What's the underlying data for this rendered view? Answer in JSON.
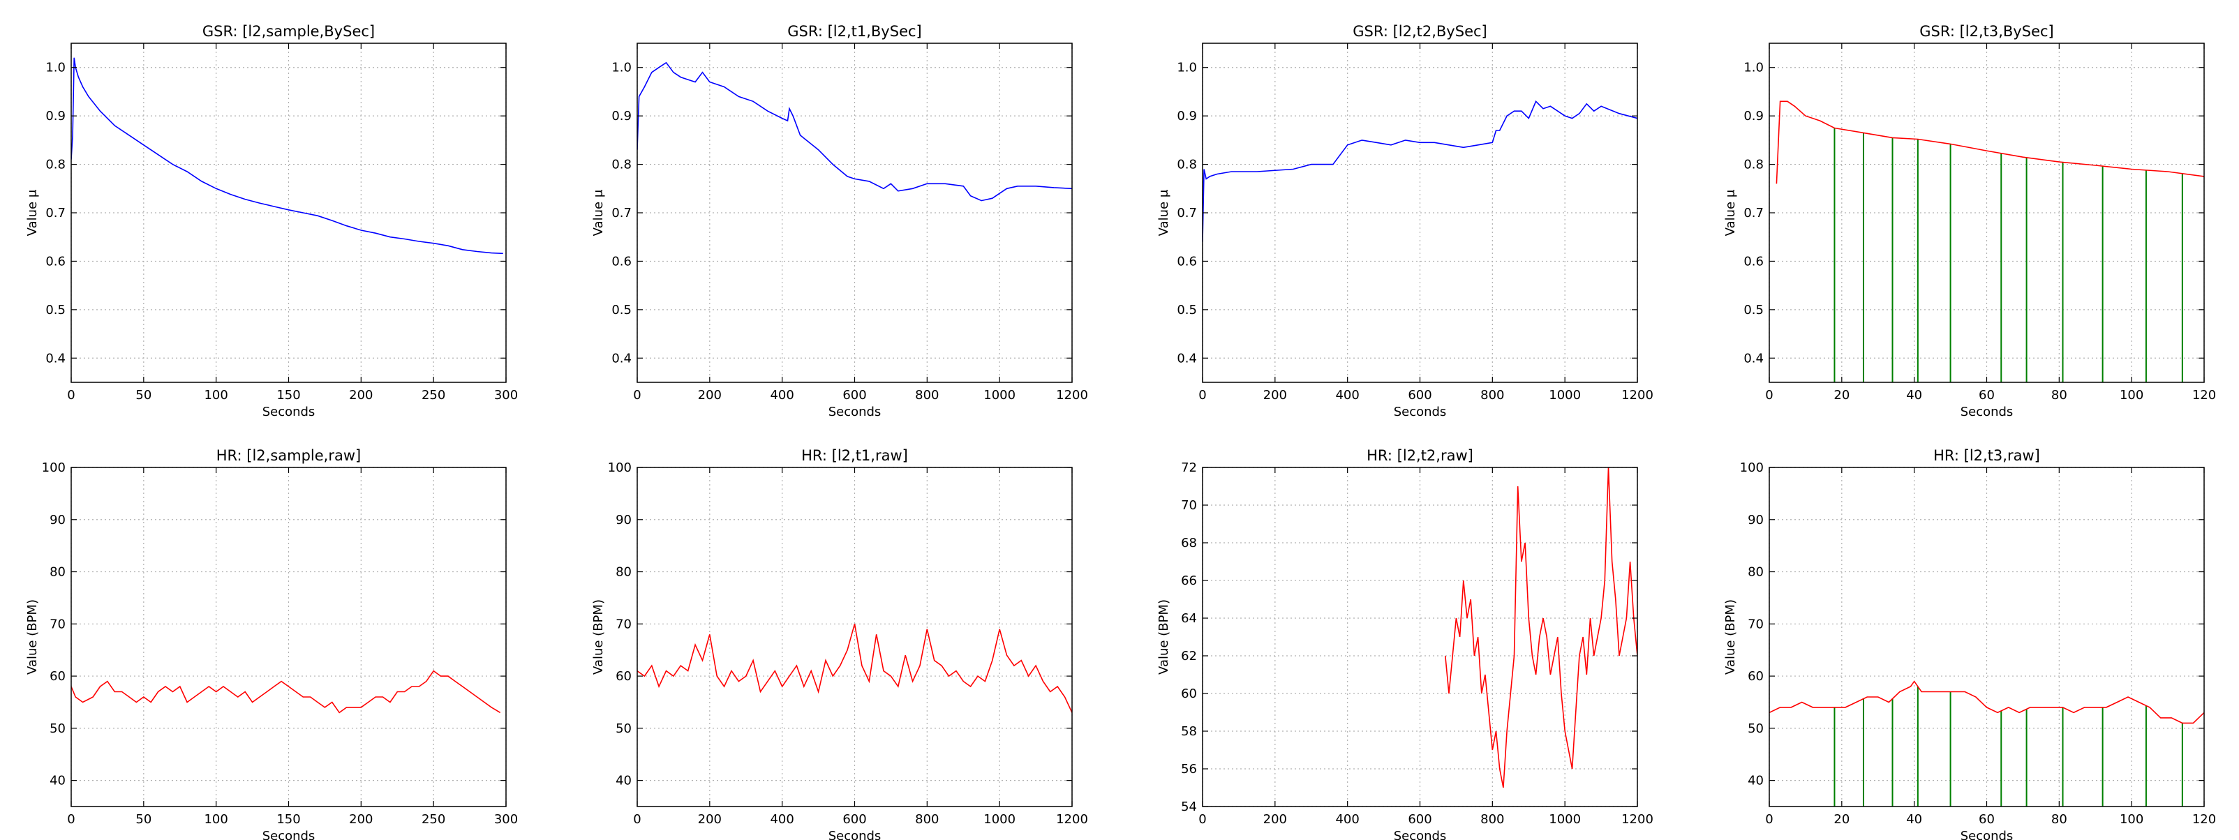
{
  "chart_data": [
    {
      "type": "line",
      "title": "GSR: [l2,sample,BySec]",
      "xlabel": "Seconds",
      "ylabel": "Value μ",
      "xlim": [
        0,
        300
      ],
      "ylim": [
        0.35,
        1.05
      ],
      "xticks": [
        0,
        50,
        100,
        150,
        200,
        250,
        300
      ],
      "yticks": [
        0.4,
        0.5,
        0.6,
        0.7,
        0.8,
        0.9,
        1.0
      ],
      "xtick_labels": [
        "0",
        "50",
        "100",
        "150",
        "200",
        "250",
        "300"
      ],
      "ytick_labels": [
        "0.4",
        "0.5",
        "0.6",
        "0.7",
        "0.8",
        "0.9",
        "1.0"
      ],
      "grid": true,
      "line_color": "#0000ff",
      "series": [
        {
          "x": [
            0,
            1,
            2,
            3,
            5,
            8,
            12,
            20,
            30,
            40,
            50,
            60,
            70,
            80,
            90,
            100,
            110,
            120,
            130,
            140,
            150,
            160,
            170,
            180,
            190,
            200,
            210,
            220,
            230,
            240,
            250,
            260,
            270,
            280,
            290,
            298
          ],
          "y": [
            0.81,
            0.86,
            1.02,
            1.0,
            0.98,
            0.96,
            0.94,
            0.91,
            0.88,
            0.86,
            0.84,
            0.82,
            0.8,
            0.785,
            0.765,
            0.75,
            0.738,
            0.728,
            0.72,
            0.713,
            0.706,
            0.7,
            0.694,
            0.684,
            0.673,
            0.664,
            0.658,
            0.65,
            0.646,
            0.641,
            0.637,
            0.632,
            0.624,
            0.62,
            0.617,
            0.616
          ]
        }
      ],
      "vlines": [],
      "vline_color": "#008000"
    },
    {
      "type": "line",
      "title": "GSR: [l2,t1,BySec]",
      "xlabel": "Seconds",
      "ylabel": "Value μ",
      "xlim": [
        0,
        1200
      ],
      "ylim": [
        0.35,
        1.05
      ],
      "xticks": [
        0,
        200,
        400,
        600,
        800,
        1000,
        1200
      ],
      "yticks": [
        0.4,
        0.5,
        0.6,
        0.7,
        0.8,
        0.9,
        1.0
      ],
      "xtick_labels": [
        "0",
        "200",
        "400",
        "600",
        "800",
        "1000",
        "1200"
      ],
      "ytick_labels": [
        "0.4",
        "0.5",
        "0.6",
        "0.7",
        "0.8",
        "0.9",
        "1.0"
      ],
      "grid": true,
      "line_color": "#0000ff",
      "series": [
        {
          "x": [
            0,
            5,
            20,
            40,
            60,
            80,
            100,
            120,
            140,
            160,
            180,
            200,
            240,
            280,
            320,
            360,
            400,
            415,
            420,
            430,
            450,
            500,
            540,
            580,
            600,
            640,
            680,
            700,
            720,
            760,
            800,
            850,
            900,
            920,
            950,
            980,
            1000,
            1020,
            1050,
            1100,
            1150,
            1200
          ],
          "y": [
            0.83,
            0.94,
            0.96,
            0.99,
            1.0,
            1.01,
            0.99,
            0.98,
            0.975,
            0.97,
            0.99,
            0.97,
            0.96,
            0.94,
            0.93,
            0.91,
            0.895,
            0.89,
            0.915,
            0.9,
            0.86,
            0.83,
            0.8,
            0.775,
            0.77,
            0.765,
            0.75,
            0.76,
            0.745,
            0.75,
            0.76,
            0.76,
            0.755,
            0.735,
            0.725,
            0.73,
            0.74,
            0.75,
            0.755,
            0.755,
            0.752,
            0.75
          ]
        }
      ],
      "vlines": [],
      "vline_color": "#008000"
    },
    {
      "type": "line",
      "title": "GSR: [l2,t2,BySec]",
      "xlabel": "Seconds",
      "ylabel": "Value μ",
      "xlim": [
        0,
        1200
      ],
      "ylim": [
        0.35,
        1.05
      ],
      "xticks": [
        0,
        200,
        400,
        600,
        800,
        1000,
        1200
      ],
      "yticks": [
        0.4,
        0.5,
        0.6,
        0.7,
        0.8,
        0.9,
        1.0
      ],
      "xtick_labels": [
        "0",
        "200",
        "400",
        "600",
        "800",
        "1000",
        "1200"
      ],
      "ytick_labels": [
        "0.4",
        "0.5",
        "0.6",
        "0.7",
        "0.8",
        "0.9",
        "1.0"
      ],
      "grid": true,
      "line_color": "#0000ff",
      "series": [
        {
          "x": [
            0,
            4,
            10,
            20,
            40,
            80,
            150,
            250,
            300,
            360,
            380,
            400,
            440,
            480,
            520,
            560,
            600,
            640,
            680,
            720,
            760,
            800,
            810,
            820,
            840,
            860,
            880,
            900,
            920,
            940,
            960,
            980,
            1000,
            1020,
            1040,
            1060,
            1080,
            1100,
            1150,
            1200
          ],
          "y": [
            0.64,
            0.79,
            0.77,
            0.775,
            0.78,
            0.785,
            0.785,
            0.79,
            0.8,
            0.8,
            0.82,
            0.84,
            0.85,
            0.845,
            0.84,
            0.85,
            0.845,
            0.845,
            0.84,
            0.835,
            0.84,
            0.845,
            0.87,
            0.87,
            0.9,
            0.91,
            0.91,
            0.895,
            0.93,
            0.915,
            0.92,
            0.91,
            0.9,
            0.895,
            0.905,
            0.925,
            0.91,
            0.92,
            0.905,
            0.895
          ]
        }
      ],
      "vlines": [],
      "vline_color": "#008000"
    },
    {
      "type": "line",
      "title": "GSR: [l2,t3,BySec]",
      "xlabel": "Seconds",
      "ylabel": "Value μ",
      "xlim": [
        0,
        120
      ],
      "ylim": [
        0.35,
        1.05
      ],
      "xticks": [
        0,
        20,
        40,
        60,
        80,
        100,
        120
      ],
      "yticks": [
        0.4,
        0.5,
        0.6,
        0.7,
        0.8,
        0.9,
        1.0
      ],
      "xtick_labels": [
        "0",
        "20",
        "40",
        "60",
        "80",
        "100",
        "120"
      ],
      "ytick_labels": [
        "0.4",
        "0.5",
        "0.6",
        "0.7",
        "0.8",
        "0.9",
        "1.0"
      ],
      "grid": true,
      "line_color": "#ff0000",
      "series": [
        {
          "x": [
            2,
            3,
            5,
            7,
            10,
            14,
            18,
            26,
            34,
            41,
            50,
            60,
            70,
            80,
            90,
            100,
            110,
            120
          ],
          "y": [
            0.76,
            0.93,
            0.93,
            0.92,
            0.9,
            0.89,
            0.875,
            0.865,
            0.855,
            0.852,
            0.842,
            0.828,
            0.815,
            0.805,
            0.798,
            0.79,
            0.785,
            0.775
          ]
        }
      ],
      "vlines": [
        18,
        26,
        34,
        41,
        50,
        64,
        71,
        81,
        92,
        104,
        114
      ],
      "vline_color": "#008000"
    },
    {
      "type": "line",
      "title": "HR: [l2,sample,raw]",
      "xlabel": "Seconds",
      "ylabel": "Value (BPM)",
      "xlim": [
        0,
        300
      ],
      "ylim": [
        35,
        100
      ],
      "xticks": [
        0,
        50,
        100,
        150,
        200,
        250,
        300
      ],
      "yticks": [
        40,
        50,
        60,
        70,
        80,
        90,
        100
      ],
      "xtick_labels": [
        "0",
        "50",
        "100",
        "150",
        "200",
        "250",
        "300"
      ],
      "ytick_labels": [
        "40",
        "50",
        "60",
        "70",
        "80",
        "90",
        "100"
      ],
      "grid": true,
      "line_color": "#ff0000",
      "series": [
        {
          "x": [
            0,
            3,
            8,
            15,
            20,
            25,
            30,
            35,
            40,
            45,
            50,
            55,
            60,
            65,
            70,
            75,
            80,
            85,
            90,
            95,
            100,
            105,
            110,
            115,
            120,
            125,
            130,
            135,
            140,
            145,
            150,
            155,
            160,
            165,
            170,
            175,
            180,
            185,
            190,
            195,
            200,
            205,
            210,
            215,
            220,
            225,
            230,
            235,
            240,
            245,
            250,
            255,
            260,
            265,
            270,
            275,
            280,
            285,
            290,
            296
          ],
          "y": [
            58,
            56,
            55,
            56,
            58,
            59,
            57,
            57,
            56,
            55,
            56,
            55,
            57,
            58,
            57,
            58,
            55,
            56,
            57,
            58,
            57,
            58,
            57,
            56,
            57,
            55,
            56,
            57,
            58,
            59,
            58,
            57,
            56,
            56,
            55,
            54,
            55,
            53,
            54,
            54,
            54,
            55,
            56,
            56,
            55,
            57,
            57,
            58,
            58,
            59,
            61,
            60,
            60,
            59,
            58,
            57,
            56,
            55,
            54,
            53
          ]
        }
      ],
      "vlines": [],
      "vline_color": "#008000"
    },
    {
      "type": "line",
      "title": "HR: [l2,t1,raw]",
      "xlabel": "Seconds",
      "ylabel": "Value (BPM)",
      "xlim": [
        0,
        1200
      ],
      "ylim": [
        35,
        100
      ],
      "xticks": [
        0,
        200,
        400,
        600,
        800,
        1000,
        1200
      ],
      "yticks": [
        40,
        50,
        60,
        70,
        80,
        90,
        100
      ],
      "xtick_labels": [
        "0",
        "200",
        "400",
        "600",
        "800",
        "1000",
        "1200"
      ],
      "ytick_labels": [
        "40",
        "50",
        "60",
        "70",
        "80",
        "90",
        "100"
      ],
      "grid": true,
      "line_color": "#ff0000",
      "series": [
        {
          "x": [
            0,
            20,
            40,
            60,
            80,
            100,
            120,
            140,
            160,
            180,
            200,
            220,
            240,
            260,
            280,
            300,
            320,
            340,
            360,
            380,
            400,
            420,
            440,
            460,
            480,
            500,
            520,
            540,
            560,
            580,
            600,
            620,
            640,
            660,
            680,
            700,
            720,
            740,
            760,
            780,
            800,
            820,
            840,
            860,
            880,
            900,
            920,
            940,
            960,
            980,
            1000,
            1020,
            1040,
            1060,
            1080,
            1100,
            1120,
            1140,
            1160,
            1180,
            1200
          ],
          "y": [
            61,
            60,
            62,
            58,
            61,
            60,
            62,
            61,
            66,
            63,
            68,
            60,
            58,
            61,
            59,
            60,
            63,
            57,
            59,
            61,
            58,
            60,
            62,
            58,
            61,
            57,
            63,
            60,
            62,
            65,
            70,
            62,
            59,
            68,
            61,
            60,
            58,
            64,
            59,
            62,
            69,
            63,
            62,
            60,
            61,
            59,
            58,
            60,
            59,
            63,
            69,
            64,
            62,
            63,
            60,
            62,
            59,
            57,
            58,
            56,
            53
          ]
        }
      ],
      "vlines": [],
      "vline_color": "#008000"
    },
    {
      "type": "line",
      "title": "HR: [l2,t2,raw]",
      "xlabel": "Seconds",
      "ylabel": "Value (BPM)",
      "xlim": [
        0,
        1200
      ],
      "ylim": [
        54,
        72
      ],
      "xticks": [
        0,
        200,
        400,
        600,
        800,
        1000,
        1200
      ],
      "yticks": [
        54,
        56,
        58,
        60,
        62,
        64,
        66,
        68,
        70,
        72
      ],
      "xtick_labels": [
        "0",
        "200",
        "400",
        "600",
        "800",
        "1000",
        "1200"
      ],
      "ytick_labels": [
        "54",
        "56",
        "58",
        "60",
        "62",
        "64",
        "66",
        "68",
        "70",
        "72"
      ],
      "grid": true,
      "line_color": "#ff0000",
      "series": [
        {
          "x": [
            670,
            680,
            690,
            700,
            710,
            720,
            730,
            740,
            750,
            760,
            770,
            780,
            790,
            800,
            810,
            820,
            830,
            840,
            850,
            860,
            870,
            880,
            890,
            900,
            910,
            920,
            930,
            940,
            950,
            960,
            970,
            980,
            990,
            1000,
            1010,
            1020,
            1030,
            1040,
            1050,
            1060,
            1070,
            1080,
            1090,
            1100,
            1110,
            1120,
            1130,
            1140,
            1150,
            1160,
            1170,
            1180,
            1190,
            1200
          ],
          "y": [
            62,
            60,
            62,
            64,
            63,
            66,
            64,
            65,
            62,
            63,
            60,
            61,
            59,
            57,
            58,
            56,
            55,
            58,
            60,
            62,
            71,
            67,
            68,
            64,
            62,
            61,
            63,
            64,
            63,
            61,
            62,
            63,
            60,
            58,
            57,
            56,
            59,
            62,
            63,
            61,
            64,
            62,
            63,
            64,
            66,
            72,
            67,
            65,
            62,
            63,
            64,
            67,
            64,
            62
          ]
        }
      ],
      "vlines": [],
      "vline_color": "#008000"
    },
    {
      "type": "line",
      "title": "HR: [l2,t3,raw]",
      "xlabel": "Seconds",
      "ylabel": "Value (BPM)",
      "xlim": [
        0,
        120
      ],
      "ylim": [
        35,
        100
      ],
      "xticks": [
        0,
        20,
        40,
        60,
        80,
        100,
        120
      ],
      "yticks": [
        40,
        50,
        60,
        70,
        80,
        90,
        100
      ],
      "xtick_labels": [
        "0",
        "20",
        "40",
        "60",
        "80",
        "100",
        "120"
      ],
      "ytick_labels": [
        "40",
        "50",
        "60",
        "70",
        "80",
        "90",
        "100"
      ],
      "grid": true,
      "line_color": "#ff0000",
      "series": [
        {
          "x": [
            0,
            3,
            6,
            9,
            12,
            15,
            18,
            21,
            24,
            27,
            30,
            33,
            36,
            39,
            40,
            42,
            45,
            48,
            51,
            54,
            57,
            60,
            63,
            66,
            69,
            72,
            75,
            78,
            81,
            84,
            87,
            90,
            93,
            96,
            99,
            102,
            105,
            108,
            111,
            114,
            117,
            120
          ],
          "y": [
            53,
            54,
            54,
            55,
            54,
            54,
            54,
            54,
            55,
            56,
            56,
            55,
            57,
            58,
            59,
            57,
            57,
            57,
            57,
            57,
            56,
            54,
            53,
            54,
            53,
            54,
            54,
            54,
            54,
            53,
            54,
            54,
            54,
            55,
            56,
            55,
            54,
            52,
            52,
            51,
            51,
            53
          ]
        }
      ],
      "vlines": [
        18,
        26,
        34,
        41,
        50,
        64,
        71,
        81,
        92,
        104,
        114
      ],
      "vline_color": "#008000"
    }
  ]
}
